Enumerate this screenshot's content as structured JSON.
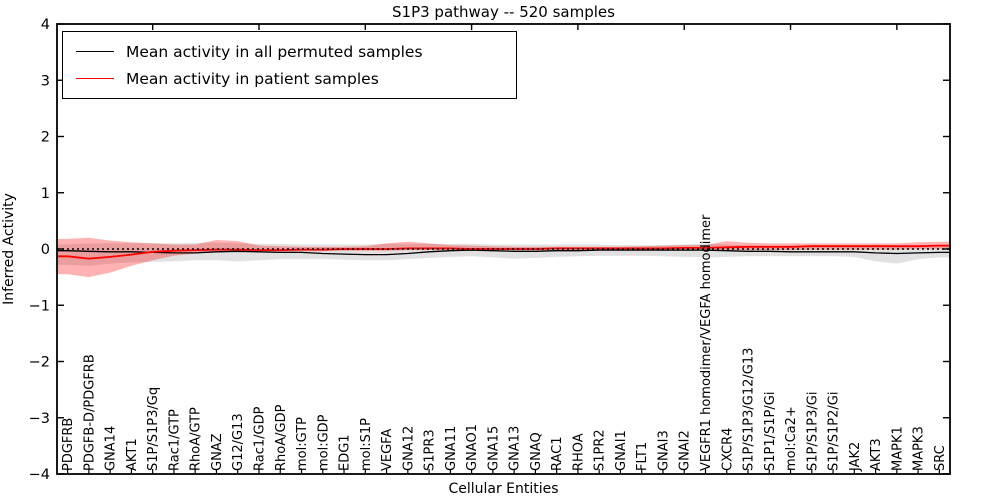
{
  "title": "S1P3 pathway -- 520 samples",
  "legend": {
    "position": "upper left",
    "entries": [
      {
        "label": "Mean activity in all permuted samples",
        "color": "#000000"
      },
      {
        "label": "Mean activity in patient samples",
        "color": "#ff0000"
      }
    ]
  },
  "chart_data": {
    "type": "line",
    "title": "S1P3 pathway -- 520 samples",
    "xlabel": "Cellular Entities",
    "ylabel": "Inferred Activity",
    "ylim": [
      -4,
      4
    ],
    "yticks": [
      4,
      3,
      2,
      1,
      0,
      -1,
      -2,
      -3,
      -4
    ],
    "grid": false,
    "legend_position": "upper left",
    "zero_reference_line": "black dotted line at y=0",
    "x_tick_label_rotation": 90,
    "categories": [
      "PDGFRB",
      "PDGFB-D/PDGFRB",
      "GNA14",
      "AKT1",
      "S1P/S1P3/Gq",
      "Rac1/GTP",
      "RhoA/GTP",
      "GNAZ",
      "G12/G13",
      "Rac1/GDP",
      "RhoA/GDP",
      "mol:GTP",
      "mol:GDP",
      "EDG1",
      "mol:S1P",
      "VEGFA",
      "GNA12",
      "S1PR3",
      "GNA11",
      "GNAO1",
      "GNA15",
      "GNA13",
      "GNAQ",
      "RAC1",
      "RHOA",
      "S1PR2",
      "GNAI1",
      "FLT1",
      "GNAI3",
      "GNAI2",
      "VEGFR1 homodimer/VEGFA homodimer",
      "CXCR4",
      "S1P/S1P3/G12/G13",
      "S1P1/S1P/Gi",
      "mol:Ca2+",
      "S1P/S1P3/Gi",
      "S1P/S1P2/Gi",
      "JAK2",
      "AKT3",
      "MAPK1",
      "MAPK3",
      "SRC"
    ],
    "series": [
      {
        "name": "Mean activity in all permuted samples",
        "kind": "line",
        "color": "#000000",
        "values": [
          -0.03,
          -0.04,
          -0.05,
          -0.05,
          -0.06,
          -0.07,
          -0.07,
          -0.05,
          -0.04,
          -0.05,
          -0.06,
          -0.06,
          -0.08,
          -0.09,
          -0.1,
          -0.1,
          -0.08,
          -0.05,
          -0.03,
          -0.02,
          -0.03,
          -0.04,
          -0.04,
          -0.03,
          -0.03,
          -0.02,
          -0.02,
          -0.02,
          -0.02,
          -0.02,
          -0.02,
          -0.03,
          -0.04,
          -0.04,
          -0.05,
          -0.05,
          -0.05,
          -0.05,
          -0.07,
          -0.08,
          -0.07,
          -0.06
        ]
      },
      {
        "name": "Mean activity in patient samples",
        "kind": "line",
        "color": "#ff0000",
        "values": [
          -0.13,
          -0.17,
          -0.14,
          -0.1,
          -0.05,
          -0.03,
          -0.02,
          -0.01,
          -0.01,
          -0.02,
          -0.02,
          -0.01,
          -0.01,
          0.0,
          0.0,
          0.0,
          0.01,
          0.01,
          0.01,
          0.0,
          0.0,
          0.0,
          0.0,
          0.01,
          0.01,
          0.01,
          0.01,
          0.01,
          0.01,
          0.02,
          0.02,
          0.03,
          0.04,
          0.04,
          0.04,
          0.05,
          0.05,
          0.05,
          0.05,
          0.05,
          0.05,
          0.06
        ]
      },
      {
        "name": "Permuted samples spread band",
        "kind": "band",
        "color": "#aaaaaa",
        "opacity": 0.35,
        "upper": [
          0.08,
          0.1,
          0.1,
          0.1,
          0.1,
          0.1,
          0.11,
          0.11,
          0.1,
          0.09,
          0.09,
          0.08,
          0.08,
          0.08,
          0.08,
          0.09,
          0.09,
          0.09,
          0.09,
          0.09,
          0.08,
          0.08,
          0.08,
          0.08,
          0.08,
          0.08,
          0.07,
          0.07,
          0.07,
          0.08,
          0.1,
          0.08,
          0.06,
          0.05,
          0.05,
          0.05,
          0.05,
          0.05,
          0.08,
          0.06,
          0.05,
          0.05
        ],
        "lower": [
          -0.28,
          -0.3,
          -0.26,
          -0.24,
          -0.23,
          -0.22,
          -0.2,
          -0.2,
          -0.22,
          -0.2,
          -0.18,
          -0.18,
          -0.18,
          -0.19,
          -0.2,
          -0.2,
          -0.18,
          -0.16,
          -0.14,
          -0.13,
          -0.15,
          -0.17,
          -0.16,
          -0.14,
          -0.13,
          -0.12,
          -0.12,
          -0.12,
          -0.13,
          -0.14,
          -0.15,
          -0.14,
          -0.13,
          -0.13,
          -0.13,
          -0.13,
          -0.13,
          -0.14,
          -0.22,
          -0.26,
          -0.18,
          -0.15
        ]
      },
      {
        "name": "Patient samples spread band",
        "kind": "band",
        "color": "#ff0000",
        "opacity": 0.3,
        "upper": [
          0.18,
          0.2,
          0.15,
          0.12,
          0.1,
          0.08,
          0.08,
          0.16,
          0.14,
          0.06,
          0.05,
          0.04,
          0.04,
          0.04,
          0.05,
          0.1,
          0.13,
          0.1,
          0.07,
          0.06,
          0.05,
          0.04,
          0.04,
          0.04,
          0.04,
          0.04,
          0.04,
          0.05,
          0.06,
          0.07,
          0.07,
          0.14,
          0.11,
          0.1,
          0.1,
          0.1,
          0.1,
          0.1,
          0.1,
          0.1,
          0.12,
          0.13
        ],
        "lower": [
          -0.45,
          -0.5,
          -0.42,
          -0.3,
          -0.2,
          -0.12,
          -0.08,
          -0.06,
          -0.05,
          -0.05,
          -0.05,
          -0.04,
          -0.04,
          -0.03,
          -0.03,
          -0.03,
          -0.02,
          -0.02,
          -0.02,
          -0.02,
          -0.02,
          -0.02,
          -0.02,
          -0.02,
          -0.02,
          -0.02,
          -0.02,
          -0.02,
          -0.02,
          -0.01,
          -0.01,
          -0.02,
          -0.02,
          -0.02,
          -0.02,
          -0.01,
          -0.01,
          -0.01,
          -0.01,
          -0.01,
          0.0,
          0.0
        ]
      }
    ]
  }
}
